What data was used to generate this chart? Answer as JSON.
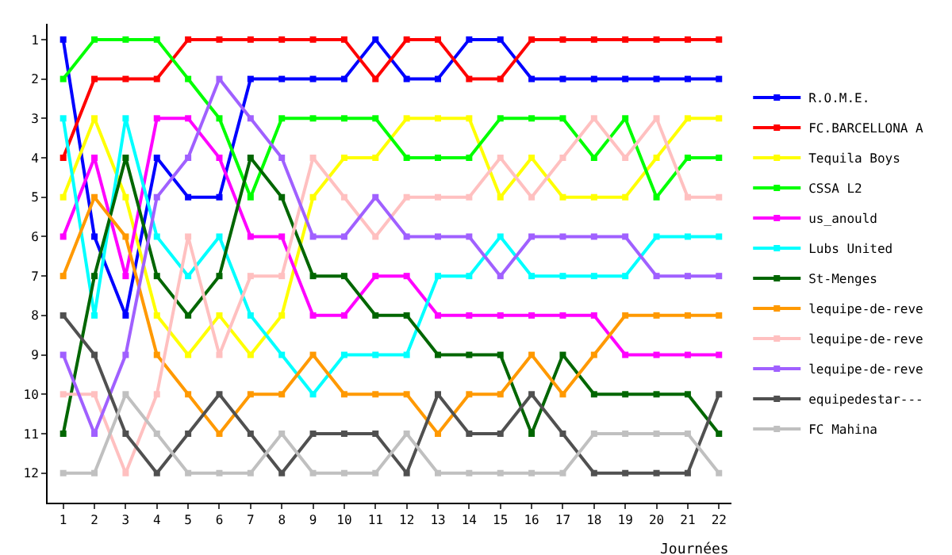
{
  "chart_data": {
    "type": "line",
    "xlabel": "Journées",
    "marker": "square",
    "line_style": "solid",
    "grid": false,
    "legend": "right",
    "x": [
      1,
      2,
      3,
      4,
      5,
      6,
      7,
      8,
      9,
      10,
      11,
      12,
      13,
      14,
      15,
      16,
      17,
      18,
      19,
      20,
      21,
      22
    ],
    "xlim": [
      0.5,
      22.4
    ],
    "xticks": [
      1,
      2,
      3,
      4,
      5,
      6,
      7,
      8,
      9,
      10,
      11,
      12,
      13,
      14,
      15,
      16,
      17,
      18,
      19,
      20,
      21,
      22
    ],
    "ylim": [
      12.75,
      0.6
    ],
    "yticks": [
      1,
      2,
      3,
      4,
      5,
      6,
      7,
      8,
      9,
      10,
      11,
      12
    ],
    "series": [
      {
        "name": "R.O.M.E.",
        "color": "#0000ff",
        "values": [
          1,
          6,
          8,
          4,
          5,
          5,
          2,
          2,
          2,
          2,
          1,
          2,
          2,
          1,
          1,
          2,
          2,
          2,
          2,
          2,
          2,
          2
        ]
      },
      {
        "name": "FC.BARCELLONA A",
        "color": "#ff0000",
        "values": [
          4,
          2,
          2,
          2,
          1,
          1,
          1,
          1,
          1,
          1,
          2,
          1,
          1,
          2,
          2,
          1,
          1,
          1,
          1,
          1,
          1,
          1
        ]
      },
      {
        "name": "Tequila Boys",
        "color": "#ffff00",
        "values": [
          5,
          3,
          5,
          8,
          9,
          8,
          9,
          8,
          5,
          4,
          4,
          3,
          3,
          3,
          5,
          4,
          5,
          5,
          5,
          4,
          3,
          3
        ]
      },
      {
        "name": "CSSA L2",
        "color": "#00ff00",
        "values": [
          2,
          1,
          1,
          1,
          2,
          3,
          5,
          3,
          3,
          3,
          3,
          4,
          4,
          4,
          3,
          3,
          3,
          4,
          3,
          5,
          4,
          4
        ]
      },
      {
        "name": "us_anould",
        "color": "#ff00ff",
        "values": [
          6,
          4,
          7,
          3,
          3,
          4,
          6,
          6,
          8,
          8,
          7,
          7,
          8,
          8,
          8,
          8,
          8,
          8,
          9,
          9,
          9,
          9
        ]
      },
      {
        "name": "Lubs United",
        "color": "#00ffff",
        "values": [
          3,
          8,
          3,
          6,
          7,
          6,
          8,
          9,
          10,
          9,
          9,
          9,
          7,
          7,
          6,
          7,
          7,
          7,
          7,
          6,
          6,
          6
        ]
      },
      {
        "name": "St-Menges",
        "color": "#006600",
        "values": [
          11,
          7,
          4,
          7,
          8,
          7,
          4,
          5,
          7,
          7,
          8,
          8,
          9,
          9,
          9,
          11,
          9,
          10,
          10,
          10,
          10,
          11
        ]
      },
      {
        "name": "lequipe-de-reve",
        "color": "#ff9900",
        "values": [
          7,
          5,
          6,
          9,
          10,
          11,
          10,
          10,
          9,
          10,
          10,
          10,
          11,
          10,
          10,
          9,
          10,
          9,
          8,
          8,
          8,
          8
        ]
      },
      {
        "name": "lequipe-de-reve",
        "color": "#ffc0c0",
        "values": [
          10,
          10,
          12,
          10,
          6,
          9,
          7,
          7,
          4,
          5,
          6,
          5,
          5,
          5,
          4,
          5,
          4,
          3,
          4,
          3,
          5,
          5
        ]
      },
      {
        "name": "lequipe-de-reve",
        "color": "#a060ff",
        "values": [
          9,
          11,
          9,
          5,
          4,
          2,
          3,
          4,
          6,
          6,
          5,
          6,
          6,
          6,
          7,
          6,
          6,
          6,
          6,
          7,
          7,
          7
        ]
      },
      {
        "name": "equipedestar---",
        "color": "#505050",
        "values": [
          8,
          9,
          11,
          12,
          11,
          10,
          11,
          12,
          11,
          11,
          11,
          12,
          10,
          11,
          11,
          10,
          11,
          12,
          12,
          12,
          12,
          10
        ]
      },
      {
        "name": "FC Mahina",
        "color": "#c0c0c0",
        "values": [
          12,
          12,
          10,
          11,
          12,
          12,
          12,
          11,
          12,
          12,
          12,
          11,
          12,
          12,
          12,
          12,
          12,
          11,
          11,
          11,
          11,
          12
        ]
      }
    ]
  }
}
